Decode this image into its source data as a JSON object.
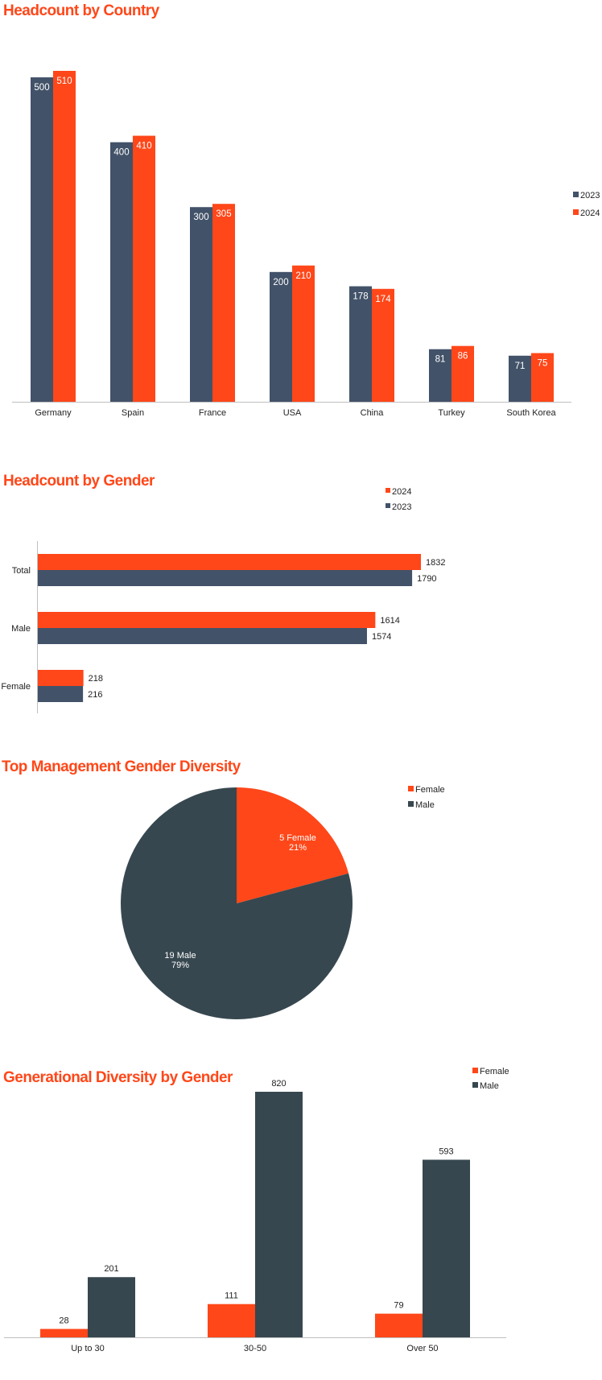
{
  "colors": {
    "orange": "#FF4719",
    "slate": "#425269",
    "charcoal": "#37474F",
    "axis": "#BFBFBF"
  },
  "chart_data": [
    {
      "id": "country",
      "type": "bar",
      "title": "Headcount by Country",
      "categories": [
        "Germany",
        "Spain",
        "France",
        "USA",
        "China",
        "Turkey",
        "South Korea"
      ],
      "series": [
        {
          "name": "2023",
          "values": [
            500,
            400,
            300,
            200,
            178,
            81,
            71
          ]
        },
        {
          "name": "2024",
          "values": [
            510,
            410,
            305,
            210,
            174,
            86,
            75
          ]
        }
      ],
      "legend_order": [
        "2023",
        "2024"
      ],
      "legend_position": "right",
      "ylim": [
        0,
        510
      ],
      "xlabel": "",
      "ylabel": ""
    },
    {
      "id": "gender",
      "type": "bar",
      "orientation": "horizontal",
      "title": "Headcount by Gender",
      "categories": [
        "Total",
        "Male",
        "Female"
      ],
      "series": [
        {
          "name": "2024",
          "values": [
            1832,
            1614,
            218
          ]
        },
        {
          "name": "2023",
          "values": [
            1790,
            1574,
            216
          ]
        }
      ],
      "legend_order": [
        "2024",
        "2023"
      ],
      "legend_position": "top-right",
      "xlim": [
        0,
        1832
      ],
      "xlabel": "",
      "ylabel": ""
    },
    {
      "id": "mgmt",
      "type": "pie",
      "title": "Top Management Gender Diversity",
      "labels": [
        "Female",
        "Male"
      ],
      "values": [
        5,
        19
      ],
      "slice_labels": [
        {
          "line1": "5 Female",
          "line2": "21%"
        },
        {
          "line1": "19 Male",
          "line2": "79%"
        }
      ],
      "legend_order": [
        "Female",
        "Male"
      ],
      "legend_position": "top-right"
    },
    {
      "id": "gen",
      "type": "bar",
      "title": "Generational Diversity by Gender",
      "categories": [
        "Up to 30",
        "30-50",
        "Over 50"
      ],
      "series": [
        {
          "name": "Female",
          "values": [
            28,
            111,
            79
          ]
        },
        {
          "name": "Male",
          "values": [
            201,
            820,
            593
          ]
        }
      ],
      "legend_order": [
        "Female",
        "Male"
      ],
      "legend_position": "top-right",
      "ylim": [
        0,
        820
      ],
      "xlabel": "",
      "ylabel": ""
    }
  ]
}
